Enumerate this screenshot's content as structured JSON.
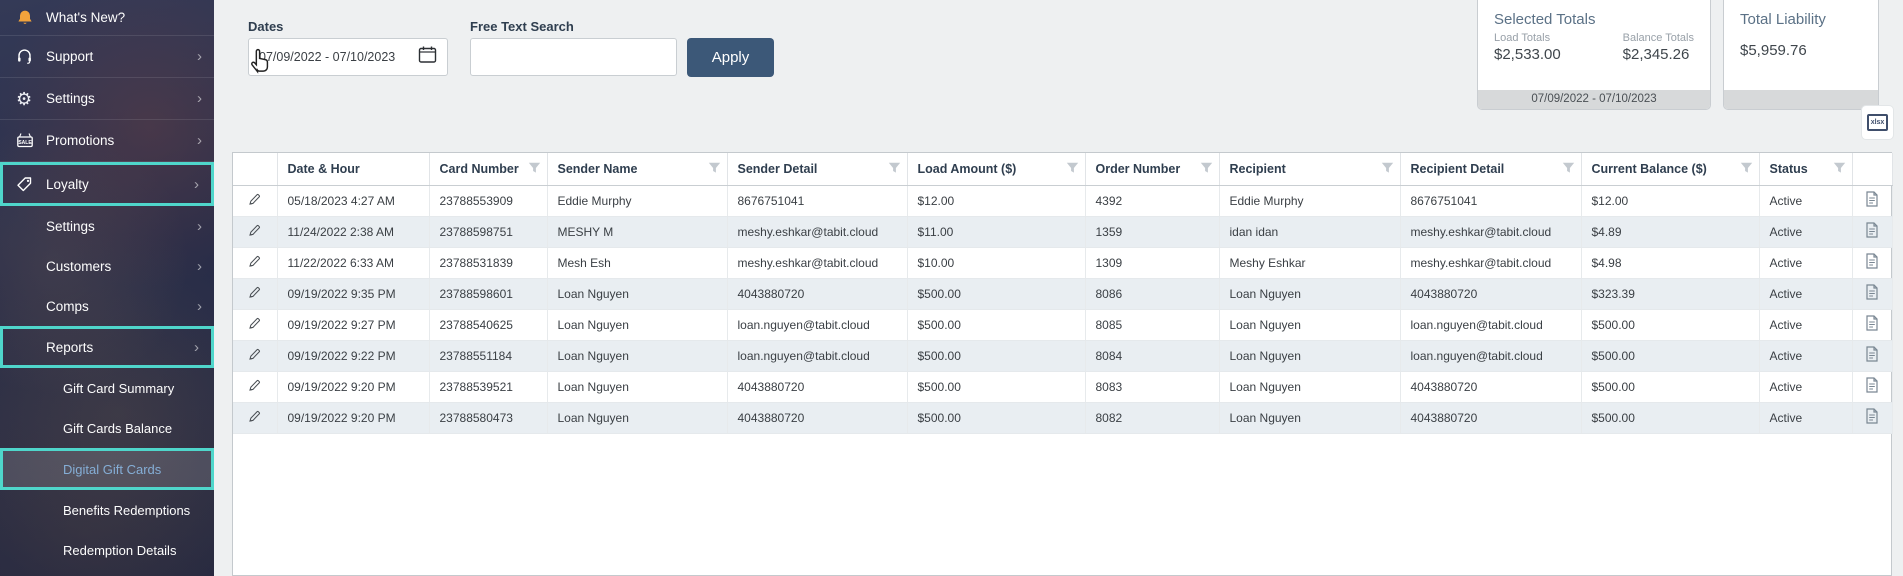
{
  "sidebar": {
    "items": [
      {
        "label": "What's New?",
        "icon": "bell"
      },
      {
        "label": "Support",
        "icon": "headset",
        "chevron": true
      },
      {
        "label": "Settings",
        "icon": "gear",
        "chevron": true
      },
      {
        "label": "Promotions",
        "icon": "sale-sign",
        "chevron": true
      },
      {
        "label": "Loyalty",
        "icon": "loyalty-tag",
        "chevron": true,
        "boxed": true
      },
      {
        "label": "Settings",
        "level": 2,
        "chevron": true
      },
      {
        "label": "Customers",
        "level": 2,
        "chevron": true
      },
      {
        "label": "Comps",
        "level": 2,
        "chevron": true
      },
      {
        "label": "Reports",
        "level": 2,
        "chevron": true,
        "boxed": true
      },
      {
        "label": "Gift Card Summary",
        "level": 3
      },
      {
        "label": "Gift Cards Balance",
        "level": 3
      },
      {
        "label": "Digital Gift Cards",
        "level": 3,
        "boxed": true,
        "selected": true
      },
      {
        "label": "Benefits Redemptions",
        "level": 3
      },
      {
        "label": "Redemption Details",
        "level": 3
      }
    ]
  },
  "filters": {
    "dates_label": "Dates",
    "dates_value": "07/09/2022 - 07/10/2023",
    "search_label": "Free Text Search",
    "search_value": "",
    "apply_label": "Apply"
  },
  "totals": {
    "selected": {
      "title": "Selected Totals",
      "load_label": "Load Totals",
      "load_value": "$2,533.00",
      "balance_label": "Balance Totals",
      "balance_value": "$2,345.26",
      "range": "07/09/2022 - 07/10/2023"
    },
    "liability": {
      "title": "Total Liability",
      "value": "$5,959.76"
    }
  },
  "export": {
    "icon_label": "xlsx"
  },
  "table": {
    "columns": [
      {
        "label": "Date & Hour",
        "filter": false
      },
      {
        "label": "Card Number",
        "filter": true
      },
      {
        "label": "Sender Name",
        "filter": true
      },
      {
        "label": "Sender Detail",
        "filter": true
      },
      {
        "label": "Load Amount ($)",
        "filter": true
      },
      {
        "label": "Order Number",
        "filter": true
      },
      {
        "label": "Recipient",
        "filter": true
      },
      {
        "label": "Recipient Detail",
        "filter": true
      },
      {
        "label": "Current Balance ($)",
        "filter": true
      },
      {
        "label": "Status",
        "filter": true
      }
    ],
    "rows": [
      [
        "05/18/2023 4:27 AM",
        "23788553909",
        "Eddie Murphy",
        "8676751041",
        "$12.00",
        "4392",
        "Eddie Murphy",
        "8676751041",
        "$12.00",
        "Active"
      ],
      [
        "11/24/2022 2:38 AM",
        "23788598751",
        "MESHY M",
        "meshy.eshkar@tabit.cloud",
        "$11.00",
        "1359",
        "idan idan",
        "meshy.eshkar@tabit.cloud",
        "$4.89",
        "Active"
      ],
      [
        "11/22/2022 6:33 AM",
        "23788531839",
        "Mesh Esh",
        "meshy.eshkar@tabit.cloud",
        "$10.00",
        "1309",
        "Meshy Eshkar",
        "meshy.eshkar@tabit.cloud",
        "$4.98",
        "Active"
      ],
      [
        "09/19/2022 9:35 PM",
        "23788598601",
        "Loan Nguyen",
        "4043880720",
        "$500.00",
        "8086",
        "Loan Nguyen",
        "4043880720",
        "$323.39",
        "Active"
      ],
      [
        "09/19/2022 9:27 PM",
        "23788540625",
        "Loan Nguyen",
        "loan.nguyen@tabit.cloud",
        "$500.00",
        "8085",
        "Loan Nguyen",
        "loan.nguyen@tabit.cloud",
        "$500.00",
        "Active"
      ],
      [
        "09/19/2022 9:22 PM",
        "23788551184",
        "Loan Nguyen",
        "loan.nguyen@tabit.cloud",
        "$500.00",
        "8084",
        "Loan Nguyen",
        "loan.nguyen@tabit.cloud",
        "$500.00",
        "Active"
      ],
      [
        "09/19/2022 9:20 PM",
        "23788539521",
        "Loan Nguyen",
        "4043880720",
        "$500.00",
        "8083",
        "Loan Nguyen",
        "4043880720",
        "$500.00",
        "Active"
      ],
      [
        "09/19/2022 9:20 PM",
        "23788580473",
        "Loan Nguyen",
        "4043880720",
        "$500.00",
        "8082",
        "Loan Nguyen",
        "4043880720",
        "$500.00",
        "Active"
      ]
    ]
  },
  "colors": {
    "accent_teal": "#4fd6cb",
    "apply_button": "#3c5878",
    "selected_link_text": "#85aed6",
    "row_alt": "#e9eef2",
    "bell_orange": "#f2a33c"
  }
}
